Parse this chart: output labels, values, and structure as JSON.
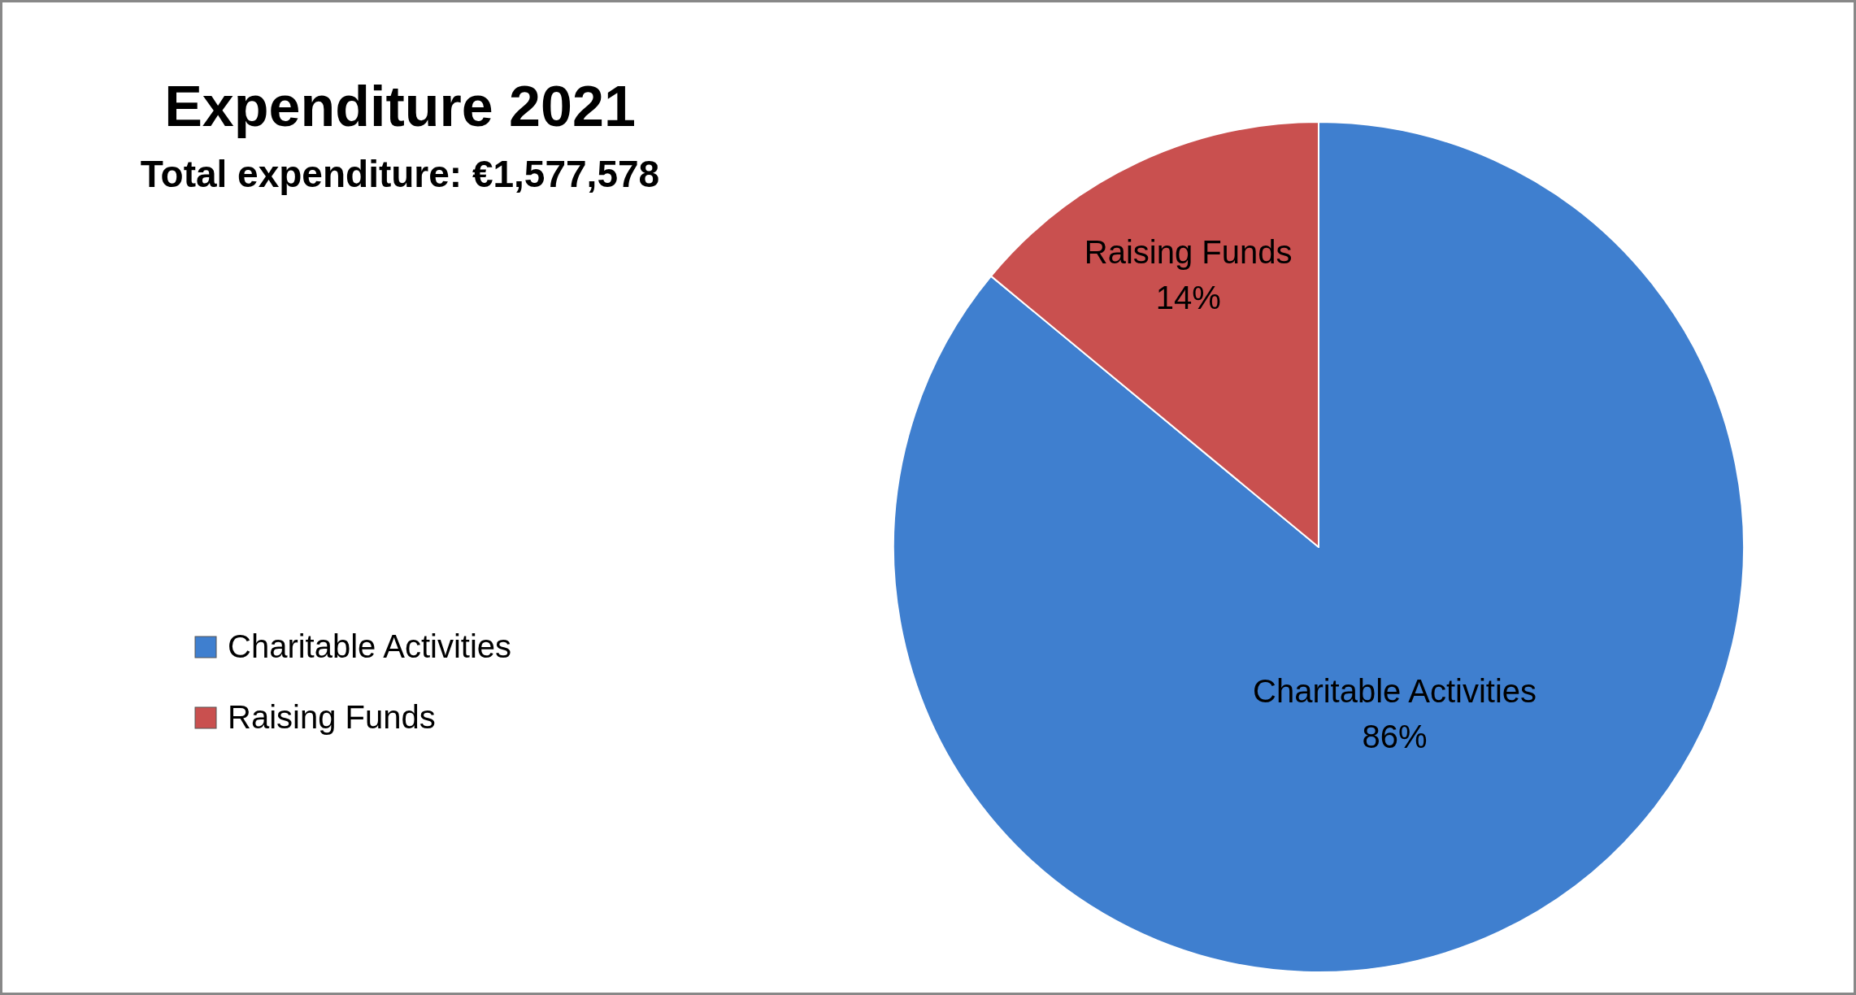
{
  "chart_data": {
    "type": "pie",
    "title": "Expenditure 2021",
    "subtitle": "Total expenditure: €1,577,578",
    "categories": [
      "Charitable Activities",
      "Raising Funds"
    ],
    "values": [
      86,
      14
    ],
    "colors": [
      "#3f7fcf",
      "#c9504f"
    ],
    "value_labels": [
      "86%",
      "14%"
    ],
    "legend": "left"
  }
}
